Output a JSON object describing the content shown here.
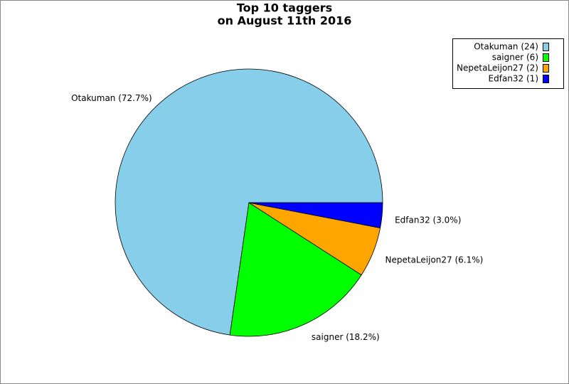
{
  "chart_data": {
    "type": "pie",
    "title": [
      "Top 10 taggers",
      "on August 11th 2016"
    ],
    "categories": [
      "Otakuman",
      "saigner",
      "NepetaLeijon27",
      "Edfan32"
    ],
    "values": [
      24,
      6,
      2,
      1
    ],
    "colors": [
      "#87ceeb",
      "#00ff00",
      "#ffa500",
      "#0000ff"
    ],
    "slice_labels": [
      "Otakuman (72.7%)",
      "saigner (18.2%)",
      "NepetaLeijon27 (6.1%)",
      "Edfan32 (3.0%)"
    ],
    "legend_labels": [
      "Otakuman (24)",
      "saigner (6)",
      "NepetaLeijon27 (2)",
      "Edfan32 (1)"
    ],
    "legend_position": "upper right"
  }
}
